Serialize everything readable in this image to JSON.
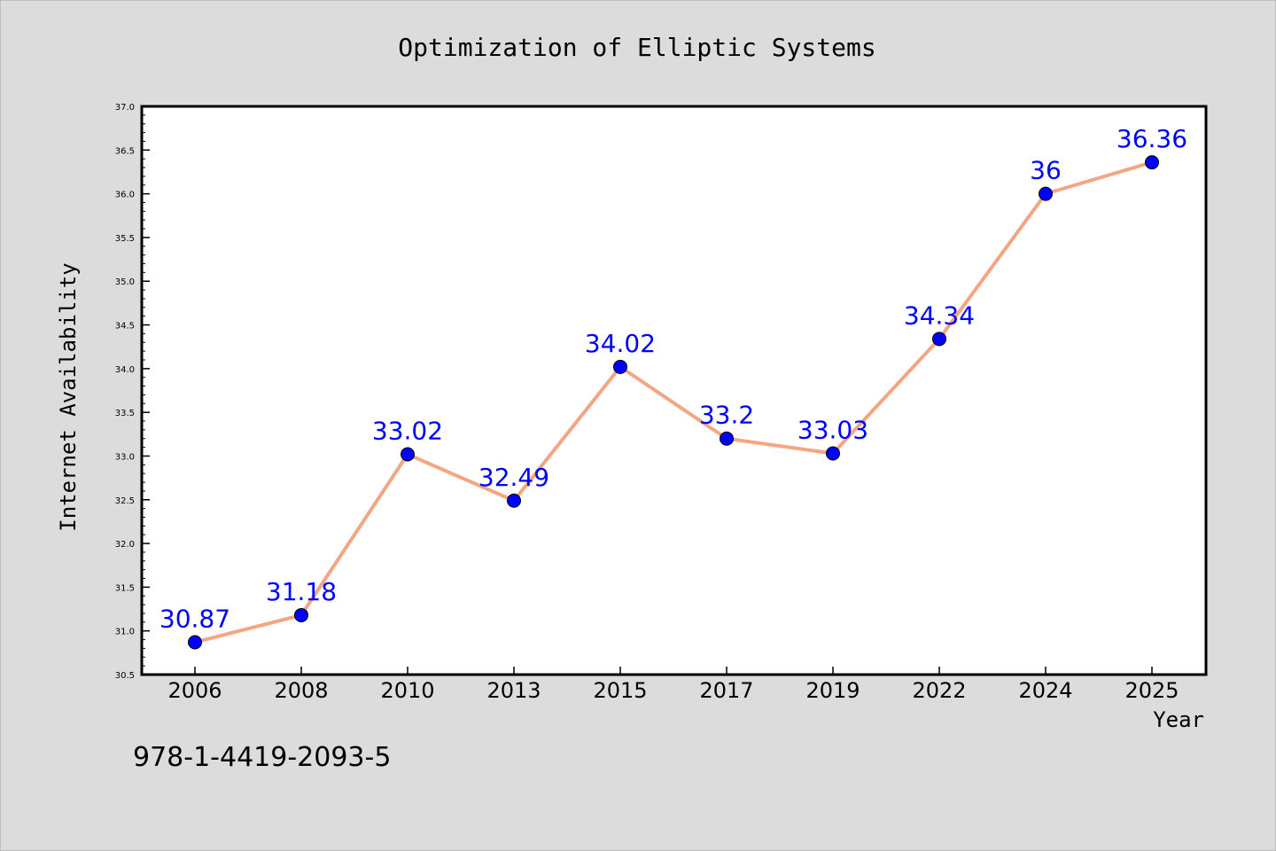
{
  "chart_data": {
    "type": "line",
    "title": "Optimization of Elliptic Systems",
    "xlabel": "Year",
    "ylabel": "Internet Availability",
    "categories": [
      "2006",
      "2008",
      "2010",
      "2013",
      "2015",
      "2017",
      "2019",
      "2022",
      "2024",
      "2025"
    ],
    "series": [
      {
        "values": [
          30.87,
          31.18,
          33.02,
          32.49,
          34.02,
          33.2,
          33.03,
          34.34,
          36,
          36.36
        ],
        "labels": [
          "30.87",
          "31.18",
          "33.02",
          "32.49",
          "34.02",
          "33.2",
          "33.03",
          "34.34",
          "36",
          "36.36"
        ],
        "line_color": "#f4a582",
        "marker_color": "#0000ff",
        "label_color": "#0000ff"
      }
    ],
    "ylim": [
      30.5,
      37.0
    ],
    "yticks": [
      "30.5",
      "31.0",
      "31.5",
      "32.0",
      "32.5",
      "33.0",
      "33.5",
      "34.0",
      "34.5",
      "35.0",
      "35.5",
      "36.0",
      "36.5",
      "37.0"
    ],
    "grid": false,
    "legend": "none"
  },
  "footnote": "978-1-4419-2093-5",
  "colors": {
    "background": "#dcdcdc",
    "plot_background": "#ffffff",
    "axis": "#000000"
  }
}
